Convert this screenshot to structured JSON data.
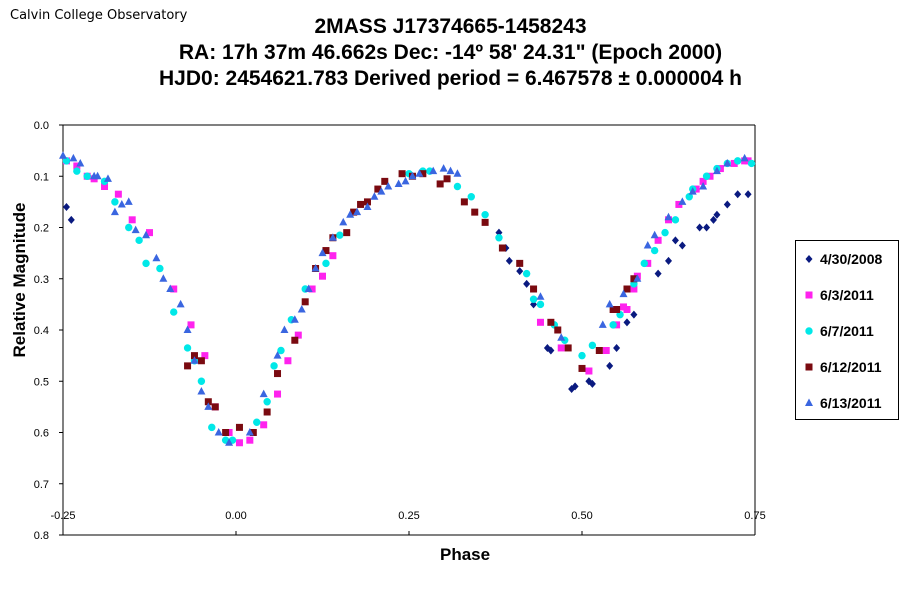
{
  "header": {
    "observatory": "Calvin College Observatory",
    "title_line1": "2MASS J17374665-1458243",
    "title_line2": "RA: 17h 37m 46.662s   Dec: -14º 58' 24.31\"  (Epoch 2000)",
    "title_line3": "HJD0: 2454621.783     Derived period =  6.467578 ± 0.000004 h"
  },
  "chart_data": {
    "type": "scatter",
    "title": "2MASS J17374665-1458243",
    "xlabel": "Phase",
    "ylabel": "Relative Magnitude",
    "xlim": [
      -0.25,
      0.75
    ],
    "ylim": [
      0.0,
      0.8
    ],
    "y_inverted": true,
    "grid": false,
    "legend_position": "right",
    "xticks": [
      "-0.25",
      "0.00",
      "0.25",
      "0.50",
      "0.75"
    ],
    "yticks": [
      "0.0",
      "0.1",
      "0.2",
      "0.3",
      "0.4",
      "0.5",
      "0.6",
      "0.7",
      "0.8"
    ],
    "series": [
      {
        "name": "4/30/2008",
        "color": "#0a1a80",
        "marker": "diamond",
        "x": [
          -0.245,
          -0.238,
          0.38,
          0.39,
          0.395,
          0.41,
          0.42,
          0.43,
          0.45,
          0.455,
          0.485,
          0.49,
          0.51,
          0.515,
          0.54,
          0.55,
          0.565,
          0.575,
          0.61,
          0.625,
          0.635,
          0.645,
          0.67,
          0.68,
          0.69,
          0.695,
          0.71,
          0.725,
          0.74
        ],
        "y": [
          0.16,
          0.185,
          0.21,
          0.24,
          0.265,
          0.285,
          0.31,
          0.35,
          0.435,
          0.44,
          0.515,
          0.51,
          0.5,
          0.505,
          0.47,
          0.435,
          0.385,
          0.37,
          0.29,
          0.265,
          0.225,
          0.235,
          0.2,
          0.2,
          0.185,
          0.175,
          0.155,
          0.135,
          0.135
        ]
      },
      {
        "name": "6/3/2011",
        "color": "#ff22ee",
        "marker": "square",
        "x": [
          -0.245,
          -0.23,
          -0.215,
          -0.205,
          -0.19,
          -0.17,
          -0.15,
          -0.125,
          -0.09,
          -0.065,
          -0.045,
          -0.03,
          -0.01,
          0.005,
          0.02,
          0.04,
          0.06,
          0.075,
          0.09,
          0.11,
          0.125,
          0.14,
          0.44,
          0.47,
          0.51,
          0.535,
          0.55,
          0.56,
          0.565,
          0.575,
          0.58,
          0.595,
          0.61,
          0.625,
          0.64,
          0.665,
          0.675,
          0.685,
          0.7,
          0.72,
          0.735,
          0.74
        ],
        "y": [
          0.07,
          0.08,
          0.1,
          0.105,
          0.12,
          0.135,
          0.185,
          0.21,
          0.32,
          0.39,
          0.45,
          0.55,
          0.6,
          0.62,
          0.615,
          0.585,
          0.525,
          0.46,
          0.41,
          0.32,
          0.295,
          0.255,
          0.385,
          0.435,
          0.48,
          0.44,
          0.39,
          0.355,
          0.36,
          0.32,
          0.295,
          0.27,
          0.225,
          0.185,
          0.155,
          0.125,
          0.11,
          0.1,
          0.085,
          0.075,
          0.07,
          0.07
        ]
      },
      {
        "name": "6/7/2011",
        "color": "#00e8e8",
        "marker": "circle",
        "x": [
          -0.245,
          -0.23,
          -0.215,
          -0.19,
          -0.175,
          -0.155,
          -0.14,
          -0.13,
          -0.11,
          -0.09,
          -0.07,
          -0.06,
          -0.05,
          -0.035,
          -0.015,
          -0.005,
          0.03,
          0.045,
          0.055,
          0.065,
          0.08,
          0.1,
          0.13,
          0.15,
          0.25,
          0.27,
          0.28,
          0.32,
          0.34,
          0.36,
          0.38,
          0.42,
          0.43,
          0.44,
          0.46,
          0.475,
          0.5,
          0.515,
          0.545,
          0.555,
          0.575,
          0.59,
          0.605,
          0.62,
          0.635,
          0.655,
          0.66,
          0.68,
          0.695,
          0.71,
          0.725,
          0.745
        ],
        "y": [
          0.07,
          0.09,
          0.1,
          0.11,
          0.15,
          0.2,
          0.225,
          0.27,
          0.28,
          0.365,
          0.435,
          0.46,
          0.5,
          0.59,
          0.615,
          0.615,
          0.58,
          0.54,
          0.47,
          0.44,
          0.38,
          0.32,
          0.27,
          0.215,
          0.095,
          0.09,
          0.09,
          0.12,
          0.14,
          0.175,
          0.22,
          0.29,
          0.34,
          0.35,
          0.39,
          0.42,
          0.45,
          0.43,
          0.39,
          0.37,
          0.31,
          0.27,
          0.245,
          0.21,
          0.185,
          0.14,
          0.125,
          0.1,
          0.085,
          0.075,
          0.07,
          0.075
        ]
      },
      {
        "name": "6/12/2011",
        "color": "#7a0a10",
        "marker": "square",
        "x": [
          -0.07,
          -0.06,
          -0.05,
          -0.04,
          -0.03,
          -0.015,
          0.005,
          0.025,
          0.045,
          0.06,
          0.085,
          0.1,
          0.115,
          0.13,
          0.14,
          0.16,
          0.17,
          0.18,
          0.19,
          0.205,
          0.215,
          0.24,
          0.255,
          0.27,
          0.295,
          0.305,
          0.33,
          0.345,
          0.36,
          0.385,
          0.41,
          0.43,
          0.455,
          0.465,
          0.48,
          0.5,
          0.525,
          0.545,
          0.55,
          0.565,
          0.575
        ],
        "y": [
          0.47,
          0.45,
          0.46,
          0.54,
          0.55,
          0.6,
          0.59,
          0.6,
          0.56,
          0.485,
          0.42,
          0.345,
          0.28,
          0.245,
          0.22,
          0.21,
          0.17,
          0.155,
          0.15,
          0.125,
          0.11,
          0.095,
          0.1,
          0.095,
          0.115,
          0.105,
          0.15,
          0.17,
          0.19,
          0.24,
          0.27,
          0.32,
          0.385,
          0.4,
          0.435,
          0.475,
          0.44,
          0.36,
          0.36,
          0.32,
          0.3
        ]
      },
      {
        "name": "6/13/2011",
        "color": "#3a66e0",
        "marker": "triangle",
        "x": [
          -0.25,
          -0.235,
          -0.225,
          -0.205,
          -0.2,
          -0.185,
          -0.175,
          -0.165,
          -0.155,
          -0.145,
          -0.13,
          -0.115,
          -0.105,
          -0.095,
          -0.08,
          -0.07,
          -0.06,
          -0.05,
          -0.04,
          -0.025,
          -0.01,
          0.02,
          0.04,
          0.06,
          0.07,
          0.085,
          0.095,
          0.105,
          0.115,
          0.125,
          0.14,
          0.155,
          0.165,
          0.175,
          0.19,
          0.2,
          0.21,
          0.22,
          0.235,
          0.245,
          0.255,
          0.265,
          0.285,
          0.3,
          0.31,
          0.32,
          0.44,
          0.47,
          0.53,
          0.54,
          0.56,
          0.58,
          0.595,
          0.605,
          0.625,
          0.645,
          0.66,
          0.675,
          0.695,
          0.71,
          0.735
        ],
        "y": [
          0.06,
          0.065,
          0.075,
          0.1,
          0.1,
          0.105,
          0.17,
          0.155,
          0.15,
          0.205,
          0.215,
          0.26,
          0.3,
          0.32,
          0.35,
          0.4,
          0.46,
          0.52,
          0.55,
          0.6,
          0.62,
          0.6,
          0.525,
          0.45,
          0.4,
          0.38,
          0.36,
          0.32,
          0.28,
          0.25,
          0.22,
          0.19,
          0.175,
          0.17,
          0.16,
          0.14,
          0.13,
          0.12,
          0.115,
          0.11,
          0.1,
          0.095,
          0.09,
          0.085,
          0.09,
          0.095,
          0.335,
          0.415,
          0.39,
          0.35,
          0.33,
          0.3,
          0.235,
          0.215,
          0.18,
          0.15,
          0.13,
          0.12,
          0.09,
          0.075,
          0.065
        ]
      }
    ]
  }
}
